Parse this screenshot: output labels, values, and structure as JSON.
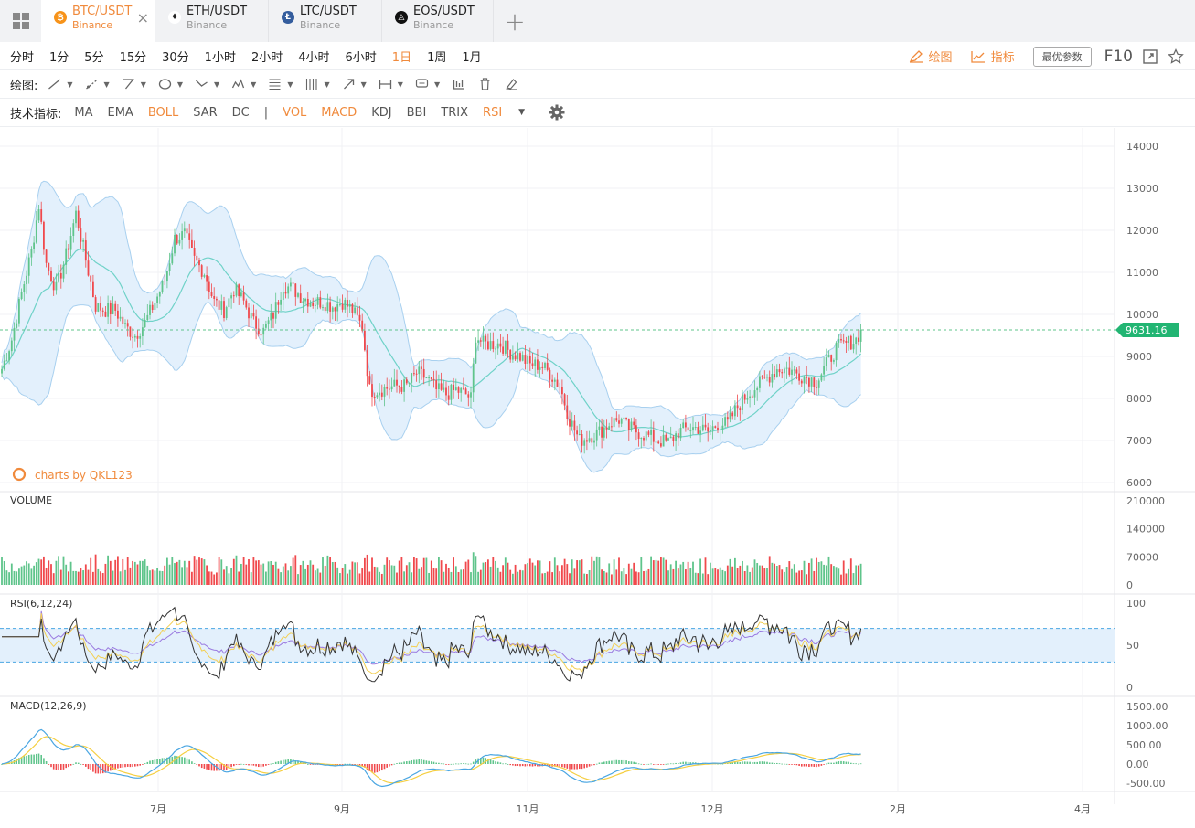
{
  "tabs": [
    {
      "pair": "BTC/USDT",
      "exchange": "Binance",
      "active": true,
      "coin_color": "#f7931a",
      "icon": "bitcoin-icon",
      "glyph": "₿"
    },
    {
      "pair": "ETH/USDT",
      "exchange": "Binance",
      "active": false,
      "coin_color": "#ffffff",
      "icon": "ethereum-icon",
      "glyph": "♦"
    },
    {
      "pair": "LTC/USDT",
      "exchange": "Binance",
      "active": false,
      "coin_color": "#345d9d",
      "icon": "litecoin-icon",
      "glyph": "Ł"
    },
    {
      "pair": "EOS/USDT",
      "exchange": "Binance",
      "active": false,
      "coin_color": "#111111",
      "icon": "eos-icon",
      "glyph": "◬"
    }
  ],
  "intervals": [
    "分时",
    "1分",
    "5分",
    "15分",
    "30分",
    "1小时",
    "2小时",
    "4小时",
    "6小时",
    "1日",
    "1周",
    "1月"
  ],
  "selected_interval": "1日",
  "toolbar": {
    "draw_label": "绘图",
    "indicator_label": "指标",
    "best_params": "最优参数",
    "f10": "F10"
  },
  "drawing": {
    "label": "绘图:",
    "tools": [
      "line-tool-icon",
      "ray-tool-icon",
      "polyline-tool-icon",
      "ellipse-tool-icon",
      "crosshair-tool-icon",
      "pattern-tool-icon",
      "fib-tool-icon",
      "channel-tool-icon",
      "arrow-tool-icon",
      "measure-tool-icon",
      "comment-tool-icon",
      "bar-pattern-icon",
      "trash-icon",
      "eraser-icon"
    ]
  },
  "indicators": {
    "label": "技术指标:",
    "main": [
      {
        "name": "MA",
        "on": false
      },
      {
        "name": "EMA",
        "on": false
      },
      {
        "name": "BOLL",
        "on": true
      },
      {
        "name": "SAR",
        "on": false
      },
      {
        "name": "DC",
        "on": false
      }
    ],
    "sub": [
      {
        "name": "VOL",
        "on": true
      },
      {
        "name": "MACD",
        "on": true
      },
      {
        "name": "KDJ",
        "on": false
      },
      {
        "name": "BBI",
        "on": false
      },
      {
        "name": "TRIX",
        "on": false
      },
      {
        "name": "RSI",
        "on": true
      }
    ],
    "separator": "|"
  },
  "colors": {
    "up": "#5fc48b",
    "down": "#f0494c",
    "accent": "#f08a3c",
    "boll_band": "#e3f0fc",
    "boll_line": "#a8d0ef",
    "boll_mid": "#6fd2c8",
    "rsi6": "#333333",
    "rsi12": "#f3cf54",
    "rsi24": "#9a7ae0",
    "dif": "#4aa6e2",
    "dea": "#f5cf42"
  },
  "chart_data": {
    "type": "candlestick",
    "watermark": "charts by QKL123",
    "current_price": "9631.16",
    "price_axis": {
      "ticks": [
        "14000",
        "13000",
        "12000",
        "11000",
        "10000",
        "9000",
        "8000",
        "7000",
        "6000"
      ],
      "range": [
        6000,
        14000
      ]
    },
    "time_axis": {
      "ticks": [
        "7月",
        "9月",
        "11月",
        "12月",
        "2月",
        "4月"
      ]
    },
    "volume": {
      "label": "VOLUME",
      "ticks": [
        "210000",
        "140000",
        "70000",
        "0"
      ],
      "range": [
        0,
        210000
      ]
    },
    "rsi": {
      "label": "RSI(6,12,24)",
      "ticks": [
        "100",
        "50",
        "0"
      ],
      "band": [
        30,
        70
      ]
    },
    "macd": {
      "label": "MACD(12,26,9)",
      "ticks": [
        "1500.00",
        "1000.00",
        "500.00",
        "0.00",
        "-500.00"
      ],
      "range": [
        -500,
        1500
      ]
    },
    "close_anchors": [
      [
        0,
        8700
      ],
      [
        4,
        9400
      ],
      [
        8,
        10500
      ],
      [
        12,
        11500
      ],
      [
        15,
        12600
      ],
      [
        18,
        11200
      ],
      [
        22,
        10600
      ],
      [
        26,
        11400
      ],
      [
        30,
        12400
      ],
      [
        34,
        11300
      ],
      [
        38,
        10200
      ],
      [
        42,
        10100
      ],
      [
        46,
        10100
      ],
      [
        50,
        9700
      ],
      [
        54,
        9500
      ],
      [
        58,
        9800
      ],
      [
        62,
        10300
      ],
      [
        66,
        10800
      ],
      [
        70,
        11800
      ],
      [
        74,
        11900
      ],
      [
        78,
        11300
      ],
      [
        82,
        11000
      ],
      [
        86,
        10300
      ],
      [
        90,
        10100
      ],
      [
        94,
        10600
      ],
      [
        98,
        10300
      ],
      [
        102,
        9800
      ],
      [
        106,
        9600
      ],
      [
        110,
        10000
      ],
      [
        114,
        10700
      ],
      [
        118,
        10600
      ],
      [
        122,
        10400
      ],
      [
        126,
        10300
      ],
      [
        130,
        10300
      ],
      [
        134,
        10200
      ],
      [
        138,
        10300
      ],
      [
        142,
        10100
      ],
      [
        146,
        9700
      ],
      [
        149,
        8200
      ],
      [
        152,
        8200
      ],
      [
        156,
        8250
      ],
      [
        160,
        8300
      ],
      [
        164,
        8300
      ],
      [
        168,
        8600
      ],
      [
        172,
        8500
      ],
      [
        176,
        8200
      ],
      [
        180,
        8100
      ],
      [
        184,
        8200
      ],
      [
        188,
        8100
      ],
      [
        190,
        8000
      ],
      [
        192,
        9500
      ],
      [
        195,
        9300
      ],
      [
        198,
        9300
      ],
      [
        202,
        9300
      ],
      [
        206,
        9100
      ],
      [
        210,
        9000
      ],
      [
        214,
        8800
      ],
      [
        218,
        8800
      ],
      [
        222,
        8600
      ],
      [
        226,
        8300
      ],
      [
        230,
        7500
      ],
      [
        234,
        7000
      ],
      [
        238,
        7100
      ],
      [
        242,
        7200
      ],
      [
        246,
        7400
      ],
      [
        250,
        7500
      ],
      [
        254,
        7300
      ],
      [
        258,
        7200
      ],
      [
        262,
        7100
      ],
      [
        266,
        7000
      ],
      [
        270,
        6950
      ],
      [
        274,
        7200
      ],
      [
        278,
        7300
      ],
      [
        282,
        7300
      ],
      [
        286,
        7200
      ],
      [
        290,
        7400
      ],
      [
        294,
        7400
      ],
      [
        298,
        7800
      ],
      [
        302,
        8100
      ],
      [
        306,
        8300
      ],
      [
        310,
        8500
      ],
      [
        314,
        8700
      ],
      [
        318,
        8700
      ],
      [
        322,
        8600
      ],
      [
        326,
        8500
      ],
      [
        330,
        8400
      ],
      [
        334,
        8800
      ],
      [
        338,
        9200
      ],
      [
        342,
        9300
      ],
      [
        346,
        9400
      ],
      [
        348,
        9631
      ]
    ]
  }
}
